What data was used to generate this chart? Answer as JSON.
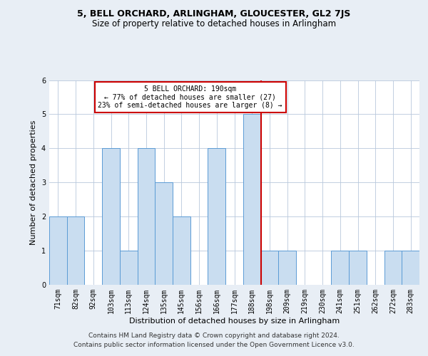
{
  "title": "5, BELL ORCHARD, ARLINGHAM, GLOUCESTER, GL2 7JS",
  "subtitle": "Size of property relative to detached houses in Arlingham",
  "xlabel": "Distribution of detached houses by size in Arlingham",
  "ylabel": "Number of detached properties",
  "categories": [
    "71sqm",
    "82sqm",
    "92sqm",
    "103sqm",
    "113sqm",
    "124sqm",
    "135sqm",
    "145sqm",
    "156sqm",
    "166sqm",
    "177sqm",
    "188sqm",
    "198sqm",
    "209sqm",
    "219sqm",
    "230sqm",
    "241sqm",
    "251sqm",
    "262sqm",
    "272sqm",
    "283sqm"
  ],
  "values": [
    2,
    2,
    0,
    4,
    1,
    4,
    3,
    2,
    0,
    4,
    0,
    5,
    1,
    1,
    0,
    0,
    1,
    1,
    0,
    1,
    1
  ],
  "bar_color": "#c9ddf0",
  "bar_edge_color": "#5b9bd5",
  "subject_line_color": "#cc0000",
  "annotation_line1": "5 BELL ORCHARD: 190sqm",
  "annotation_line2": "← 77% of detached houses are smaller (27)",
  "annotation_line3": "23% of semi-detached houses are larger (8) →",
  "annotation_box_edgecolor": "#cc0000",
  "ylim": [
    0,
    6
  ],
  "yticks": [
    0,
    1,
    2,
    3,
    4,
    5,
    6
  ],
  "background_color": "#e8eef5",
  "plot_bg_color": "#ffffff",
  "title_fontsize": 9,
  "subtitle_fontsize": 8.5,
  "ylabel_fontsize": 8,
  "xlabel_fontsize": 8,
  "tick_fontsize": 7,
  "annotation_fontsize": 7,
  "footer_fontsize": 6.5,
  "footer_line1": "Contains HM Land Registry data © Crown copyright and database right 2024.",
  "footer_line2": "Contains public sector information licensed under the Open Government Licence v3.0."
}
